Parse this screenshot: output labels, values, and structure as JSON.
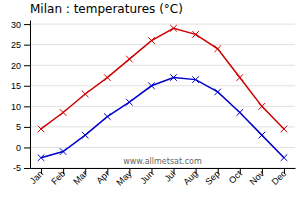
{
  "chart_data": {
    "type": "line",
    "title": "Milan : temperatures (°C)",
    "categories": [
      "Jan",
      "Feb",
      "Mar",
      "Apr",
      "May",
      "Jun",
      "Jul",
      "Aug",
      "Sep",
      "Oct",
      "Nov",
      "Dec"
    ],
    "series": [
      {
        "color": "#cc0000",
        "marker": "x",
        "values": [
          4.5,
          8.5,
          13,
          17,
          21.5,
          26,
          29,
          27.5,
          24,
          17,
          10,
          4.5
        ]
      },
      {
        "color": "#0000cc",
        "marker": "x",
        "values": [
          -2.5,
          -1,
          3,
          7.5,
          11,
          15,
          17,
          16.5,
          13.5,
          8.5,
          3,
          -2.5
        ]
      }
    ],
    "ylim": [
      -5,
      31
    ],
    "yticks": [
      -5,
      0,
      5,
      10,
      15,
      20,
      25,
      30
    ],
    "grid": true,
    "annotation": "www.allmetsat.com"
  }
}
